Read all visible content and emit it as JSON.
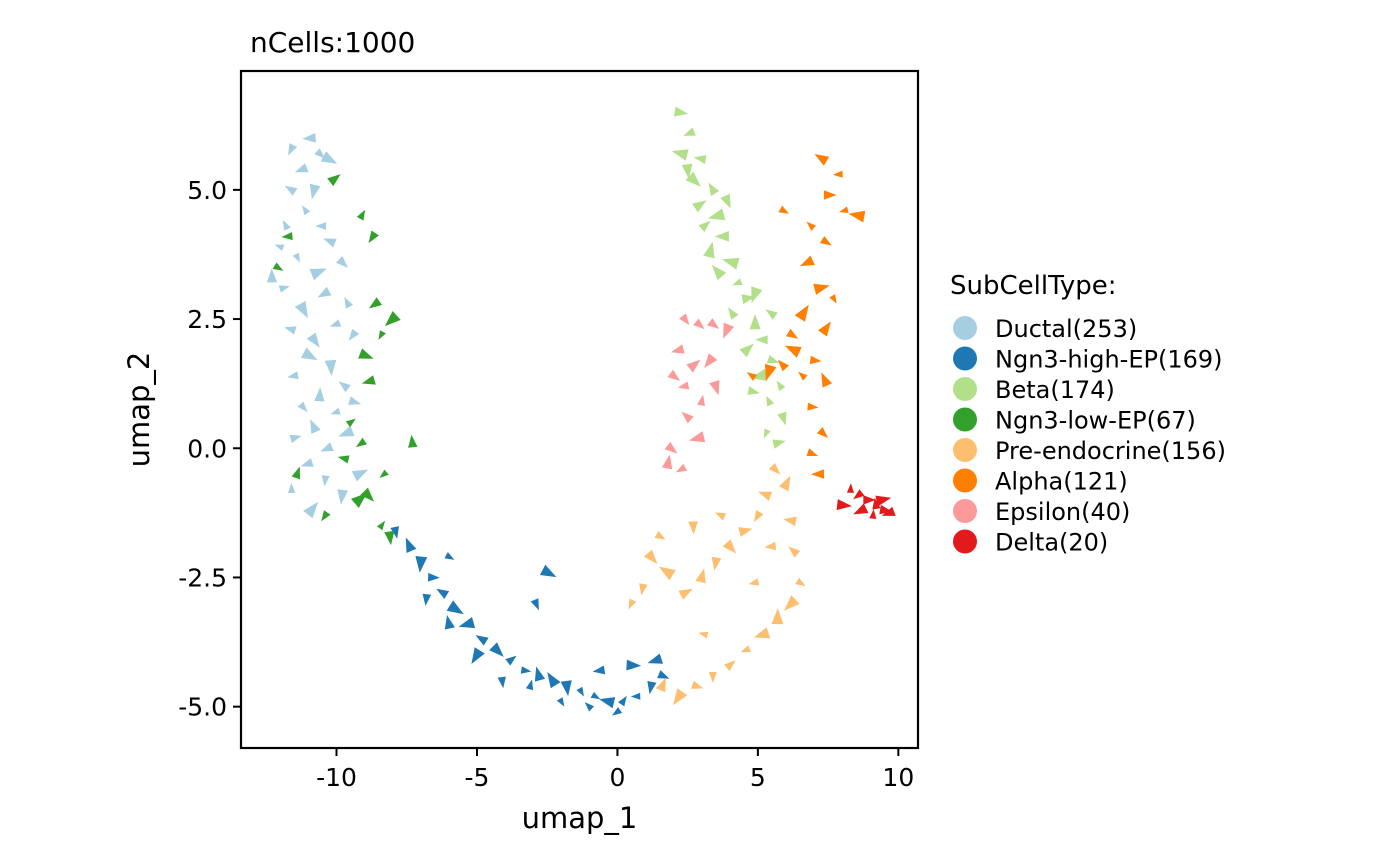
{
  "chart_data": {
    "type": "scatter",
    "marker": "arrow",
    "title": "nCells:1000",
    "xlabel": "umap_1",
    "ylabel": "umap_2",
    "xlim": [
      -13.4,
      10.7
    ],
    "ylim": [
      -5.8,
      7.3
    ],
    "x_ticks": [
      -10,
      -5,
      0,
      5,
      10
    ],
    "x_tick_labels": [
      "-10",
      "-5",
      "0",
      "5",
      "10"
    ],
    "y_ticks": [
      -5,
      -2.5,
      0,
      2.5,
      5
    ],
    "y_tick_labels": [
      "-5.0",
      "-2.5",
      "0.0",
      "2.5",
      "5.0"
    ],
    "grid": false,
    "legend_title": "SubCellType:",
    "legend_position": "right",
    "series": [
      {
        "name": "Ductal(253)",
        "color": "#A6CEE3",
        "points": [
          [
            -10.9,
            6.0
          ],
          [
            -10.6,
            5.7
          ],
          [
            -11.2,
            5.4
          ],
          [
            -10.3,
            5.6
          ],
          [
            -11.6,
            5.0
          ],
          [
            -10.8,
            5.0
          ],
          [
            -11.1,
            4.6
          ],
          [
            -10.5,
            4.3
          ],
          [
            -11.8,
            4.3
          ],
          [
            -10.2,
            4.0
          ],
          [
            -11.4,
            3.7
          ],
          [
            -10.7,
            3.4
          ],
          [
            -9.8,
            3.6
          ],
          [
            -11.9,
            3.1
          ],
          [
            -10.4,
            3.0
          ],
          [
            -9.6,
            2.8
          ],
          [
            -11.2,
            2.7
          ],
          [
            -10.0,
            2.4
          ],
          [
            -11.6,
            2.3
          ],
          [
            -10.8,
            2.1
          ],
          [
            -9.4,
            2.2
          ],
          [
            -11.0,
            1.8
          ],
          [
            -10.2,
            1.6
          ],
          [
            -11.5,
            1.4
          ],
          [
            -9.7,
            1.2
          ],
          [
            -10.6,
            1.0
          ],
          [
            -11.2,
            0.8
          ],
          [
            -10.0,
            0.7
          ],
          [
            -9.4,
            0.9
          ],
          [
            -10.8,
            0.4
          ],
          [
            -11.5,
            0.2
          ],
          [
            -10.3,
            0.0
          ],
          [
            -9.6,
            0.3
          ],
          [
            -11.0,
            -0.3
          ],
          [
            -10.4,
            -0.6
          ],
          [
            -11.6,
            -0.8
          ],
          [
            -9.8,
            -0.9
          ],
          [
            -10.9,
            -1.2
          ],
          [
            -9.2,
            -0.5
          ],
          [
            -12.3,
            3.3
          ],
          [
            -12.0,
            3.9
          ],
          [
            -11.6,
            5.8
          ]
        ]
      },
      {
        "name": "Ngn3-high-EP(169)",
        "color": "#1F78B4",
        "points": [
          [
            -7.9,
            -1.6
          ],
          [
            -7.4,
            -1.9
          ],
          [
            -7.0,
            -2.2
          ],
          [
            -6.6,
            -2.5
          ],
          [
            -6.2,
            -2.8
          ],
          [
            -5.8,
            -3.1
          ],
          [
            -5.3,
            -3.4
          ],
          [
            -4.8,
            -3.7
          ],
          [
            -4.3,
            -3.9
          ],
          [
            -3.8,
            -4.1
          ],
          [
            -3.3,
            -4.3
          ],
          [
            -2.8,
            -4.4
          ],
          [
            -2.3,
            -4.5
          ],
          [
            -1.8,
            -4.6
          ],
          [
            -1.3,
            -4.7
          ],
          [
            -0.8,
            -4.8
          ],
          [
            -0.3,
            -4.9
          ],
          [
            0.2,
            -4.9
          ],
          [
            0.7,
            -4.8
          ],
          [
            1.2,
            -4.6
          ],
          [
            1.6,
            -4.4
          ],
          [
            -4.1,
            -4.5
          ],
          [
            -3.1,
            -4.6
          ],
          [
            -2.0,
            -4.9
          ],
          [
            -1.0,
            -5.0
          ],
          [
            0.0,
            -5.1
          ],
          [
            -0.6,
            -4.3
          ],
          [
            0.5,
            -4.2
          ],
          [
            1.4,
            -4.1
          ],
          [
            -5.0,
            -4.0
          ],
          [
            -6.0,
            -3.4
          ],
          [
            -6.8,
            -2.9
          ],
          [
            -2.5,
            -2.4
          ],
          [
            -6.0,
            -2.1
          ],
          [
            -2.9,
            -3.0
          ]
        ]
      },
      {
        "name": "Beta(174)",
        "color": "#B2DF8A",
        "points": [
          [
            2.2,
            6.5
          ],
          [
            2.6,
            6.1
          ],
          [
            2.3,
            5.7
          ],
          [
            3.0,
            5.6
          ],
          [
            2.7,
            5.2
          ],
          [
            3.4,
            5.0
          ],
          [
            2.9,
            4.7
          ],
          [
            3.6,
            4.5
          ],
          [
            3.1,
            4.3
          ],
          [
            3.8,
            4.1
          ],
          [
            3.3,
            3.8
          ],
          [
            4.1,
            3.6
          ],
          [
            3.6,
            3.4
          ],
          [
            4.3,
            3.2
          ],
          [
            4.6,
            2.9
          ],
          [
            4.1,
            2.6
          ],
          [
            4.9,
            2.4
          ],
          [
            5.2,
            2.1
          ],
          [
            4.6,
            1.9
          ],
          [
            5.5,
            1.7
          ],
          [
            5.1,
            1.4
          ],
          [
            5.8,
            1.2
          ],
          [
            5.4,
            0.9
          ],
          [
            5.9,
            0.6
          ],
          [
            5.3,
            0.3
          ],
          [
            5.7,
            0.1
          ],
          [
            4.8,
            1.1
          ],
          [
            3.9,
            4.8
          ],
          [
            2.5,
            5.4
          ],
          [
            4.9,
            3.0
          ],
          [
            5.5,
            2.6
          ]
        ]
      },
      {
        "name": "Ngn3-low-EP(67)",
        "color": "#33A02C",
        "points": [
          [
            -9.1,
            4.5
          ],
          [
            -8.7,
            4.1
          ],
          [
            -10.1,
            5.2
          ],
          [
            -12.1,
            3.5
          ],
          [
            -11.7,
            4.1
          ],
          [
            -8.6,
            2.8
          ],
          [
            -8.4,
            2.2
          ],
          [
            -9.0,
            1.8
          ],
          [
            -8.8,
            1.3
          ],
          [
            -9.5,
            0.5
          ],
          [
            -9.1,
            0.1
          ],
          [
            -8.3,
            -0.5
          ],
          [
            -8.9,
            -0.9
          ],
          [
            -8.4,
            -1.5
          ],
          [
            -9.7,
            -0.2
          ],
          [
            -10.4,
            -1.3
          ],
          [
            -7.3,
            0.1
          ],
          [
            -8.1,
            -1.7
          ],
          [
            -9.2,
            -1.0
          ],
          [
            -8.0,
            2.5
          ],
          [
            -11.4,
            -0.5
          ]
        ]
      },
      {
        "name": "Pre-endocrine(156)",
        "color": "#FDBF6F",
        "points": [
          [
            1.5,
            -1.7
          ],
          [
            1.2,
            -2.1
          ],
          [
            1.8,
            -2.4
          ],
          [
            0.9,
            -2.7
          ],
          [
            0.5,
            -3.0
          ],
          [
            2.4,
            -2.8
          ],
          [
            3.0,
            -2.5
          ],
          [
            3.5,
            -2.2
          ],
          [
            4.0,
            -1.9
          ],
          [
            4.5,
            -1.6
          ],
          [
            5.0,
            -1.3
          ],
          [
            5.3,
            -0.9
          ],
          [
            5.6,
            -0.4
          ],
          [
            6.0,
            -0.7
          ],
          [
            6.2,
            -1.4
          ],
          [
            6.3,
            -2.0
          ],
          [
            6.5,
            -2.6
          ],
          [
            6.2,
            -3.0
          ],
          [
            5.7,
            -3.3
          ],
          [
            5.2,
            -3.6
          ],
          [
            4.6,
            -3.9
          ],
          [
            4.0,
            -4.2
          ],
          [
            3.4,
            -4.4
          ],
          [
            2.8,
            -4.6
          ],
          [
            2.2,
            -4.8
          ],
          [
            1.6,
            -4.6
          ],
          [
            3.1,
            -3.6
          ],
          [
            4.9,
            -2.6
          ],
          [
            5.5,
            -1.9
          ],
          [
            2.7,
            -1.5
          ],
          [
            3.7,
            -1.3
          ]
        ]
      },
      {
        "name": "Alpha(121)",
        "color": "#FF7F00",
        "points": [
          [
            7.3,
            5.6
          ],
          [
            7.9,
            5.3
          ],
          [
            7.5,
            4.9
          ],
          [
            8.1,
            4.6
          ],
          [
            6.9,
            4.3
          ],
          [
            7.4,
            4.0
          ],
          [
            6.8,
            3.6
          ],
          [
            7.2,
            3.1
          ],
          [
            7.7,
            2.9
          ],
          [
            6.6,
            2.6
          ],
          [
            7.4,
            2.3
          ],
          [
            6.3,
            1.9
          ],
          [
            7.0,
            1.7
          ],
          [
            6.6,
            1.4
          ],
          [
            5.9,
            1.6
          ],
          [
            5.4,
            1.5
          ],
          [
            4.8,
            1.4
          ],
          [
            7.4,
            1.3
          ],
          [
            6.9,
            0.8
          ],
          [
            7.3,
            0.3
          ],
          [
            6.9,
            -0.1
          ],
          [
            7.2,
            -0.5
          ],
          [
            8.6,
            4.5
          ],
          [
            6.2,
            2.2
          ],
          [
            5.9,
            4.6
          ]
        ]
      },
      {
        "name": "Epsilon(40)",
        "color": "#FB9A99",
        "points": [
          [
            2.4,
            2.5
          ],
          [
            2.9,
            2.4
          ],
          [
            3.4,
            2.4
          ],
          [
            3.9,
            2.3
          ],
          [
            2.2,
            1.9
          ],
          [
            2.7,
            1.6
          ],
          [
            3.3,
            1.7
          ],
          [
            2.4,
            1.2
          ],
          [
            3.0,
            0.9
          ],
          [
            2.5,
            0.6
          ],
          [
            2.9,
            0.2
          ],
          [
            1.9,
            0.0
          ],
          [
            2.3,
            -0.4
          ],
          [
            1.8,
            -0.3
          ],
          [
            3.5,
            1.2
          ],
          [
            2.0,
            1.4
          ]
        ]
      },
      {
        "name": "Delta(20)",
        "color": "#E31A1C",
        "points": [
          [
            8.3,
            -0.8
          ],
          [
            8.6,
            -0.9
          ],
          [
            8.9,
            -1.0
          ],
          [
            9.2,
            -1.1
          ],
          [
            9.5,
            -1.2
          ],
          [
            9.7,
            -1.25
          ],
          [
            8.0,
            -1.1
          ],
          [
            8.7,
            -1.2
          ],
          [
            9.1,
            -1.3
          ],
          [
            9.4,
            -1.0
          ]
        ]
      }
    ]
  }
}
